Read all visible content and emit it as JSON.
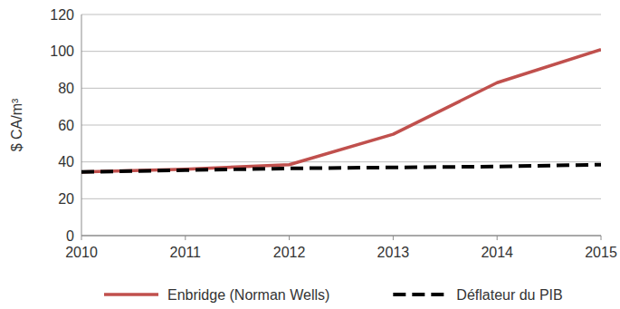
{
  "chart_data": {
    "type": "line",
    "y_label": "$ CA/m³",
    "x": [
      2010,
      2011,
      2012,
      2013,
      2014,
      2015
    ],
    "series": [
      {
        "name": "Enbridge (Norman Wells)",
        "color": "#c0504d",
        "line_style": "solid",
        "values": [
          34.5,
          36,
          38.5,
          55,
          83,
          101
        ]
      },
      {
        "name": "Déflateur du PIB",
        "color": "#000000",
        "line_style": "dashed",
        "values": [
          34.5,
          35.5,
          36.5,
          37,
          37.5,
          38.5
        ]
      }
    ],
    "xlim": [
      2010,
      2015
    ],
    "xticks": [
      2010,
      2011,
      2012,
      2013,
      2014,
      2015
    ],
    "ylim": [
      0,
      120
    ],
    "yticks": [
      0,
      20,
      40,
      60,
      80,
      100,
      120
    ],
    "grid": true,
    "legend": "bottom"
  }
}
